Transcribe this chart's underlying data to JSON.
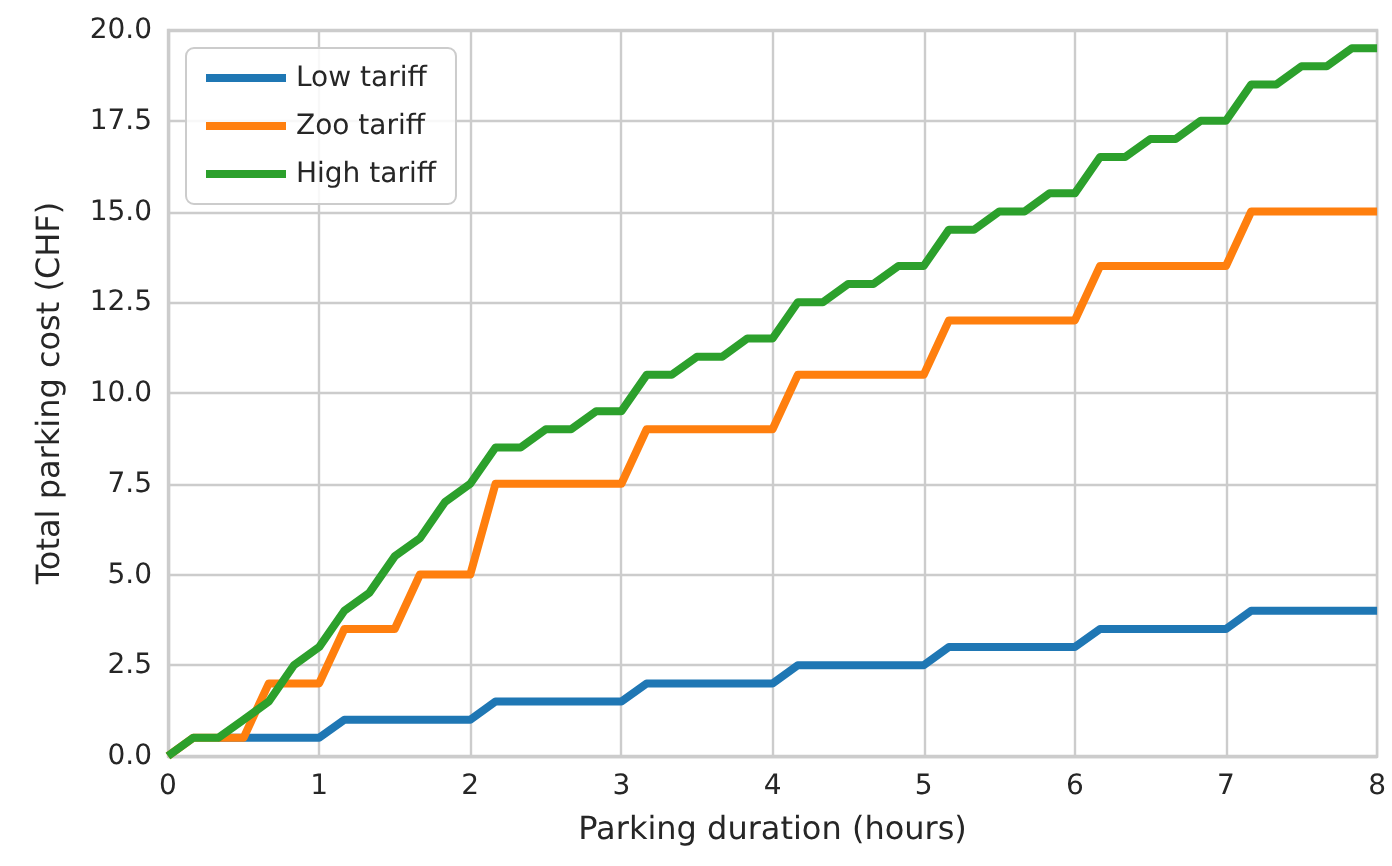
{
  "chart_data": {
    "type": "line",
    "xlabel": "Parking duration (hours)",
    "ylabel": "Total parking cost (CHF)",
    "x": [
      0,
      0.167,
      0.333,
      0.5,
      0.667,
      0.833,
      1,
      1.167,
      1.333,
      1.5,
      1.667,
      1.833,
      2,
      2.167,
      2.333,
      2.5,
      2.667,
      2.833,
      3,
      3.167,
      3.333,
      3.5,
      3.667,
      3.833,
      4,
      4.167,
      4.333,
      4.5,
      4.667,
      4.833,
      5,
      5.167,
      5.333,
      5.5,
      5.667,
      5.833,
      6,
      6.167,
      6.333,
      6.5,
      6.667,
      6.833,
      7,
      7.167,
      7.333,
      7.5,
      7.667,
      7.833,
      8
    ],
    "series": [
      {
        "name": "Low tariff",
        "color": "#1f77b4",
        "values": [
          null,
          null,
          0.5,
          0.5,
          0.5,
          0.5,
          0.5,
          1,
          1,
          1,
          1,
          1,
          1,
          1.5,
          1.5,
          1.5,
          1.5,
          1.5,
          1.5,
          2,
          2,
          2,
          2,
          2,
          2,
          2.5,
          2.5,
          2.5,
          2.5,
          2.5,
          2.5,
          3,
          3,
          3,
          3,
          3,
          3,
          3.5,
          3.5,
          3.5,
          3.5,
          3.5,
          3.5,
          4,
          4,
          4,
          4,
          4,
          4
        ]
      },
      {
        "name": "Zoo tariff",
        "color": "#ff7f0e",
        "values": [
          0,
          0.5,
          0.5,
          0.5,
          2,
          2,
          2,
          3.5,
          3.5,
          3.5,
          5,
          5,
          5,
          7.5,
          7.5,
          7.5,
          7.5,
          7.5,
          7.5,
          9,
          9,
          9,
          9,
          9,
          9,
          10.5,
          10.5,
          10.5,
          10.5,
          10.5,
          10.5,
          12,
          12,
          12,
          12,
          12,
          12,
          13.5,
          13.5,
          13.5,
          13.5,
          13.5,
          13.5,
          15,
          15,
          15,
          15,
          15,
          15
        ]
      },
      {
        "name": "High tariff",
        "color": "#2ca02c",
        "values": [
          0,
          0.5,
          0.5,
          1,
          1.5,
          2.5,
          3,
          4,
          4.5,
          5.5,
          6,
          7,
          7.5,
          8.5,
          8.5,
          9,
          9,
          9.5,
          9.5,
          10.5,
          10.5,
          11,
          11,
          11.5,
          11.5,
          12.5,
          12.5,
          13,
          13,
          13.5,
          13.5,
          14.5,
          14.5,
          15,
          15,
          15.5,
          15.5,
          16.5,
          16.5,
          17,
          17,
          17.5,
          17.5,
          18.5,
          18.5,
          19,
          19,
          19.5,
          19.5
        ]
      }
    ],
    "xlim": [
      0,
      8
    ],
    "xticks": [
      0,
      1,
      2,
      3,
      4,
      5,
      6,
      7,
      8
    ],
    "ylim": [
      0,
      20
    ],
    "yticks": [
      {
        "value": 0,
        "label": "0.0"
      },
      {
        "value": 2.5,
        "label": "2.5"
      },
      {
        "value": 5,
        "label": "5.0"
      },
      {
        "value": 7.5,
        "label": "7.5"
      },
      {
        "value": 10,
        "label": "10.0"
      },
      {
        "value": 12.5,
        "label": "12.5"
      },
      {
        "value": 15,
        "label": "15.0"
      },
      {
        "value": 17.5,
        "label": "17.5"
      },
      {
        "value": 20,
        "label": "20.0"
      }
    ],
    "grid": true,
    "legend": "top left",
    "marker": "none",
    "line_style": "solid"
  }
}
